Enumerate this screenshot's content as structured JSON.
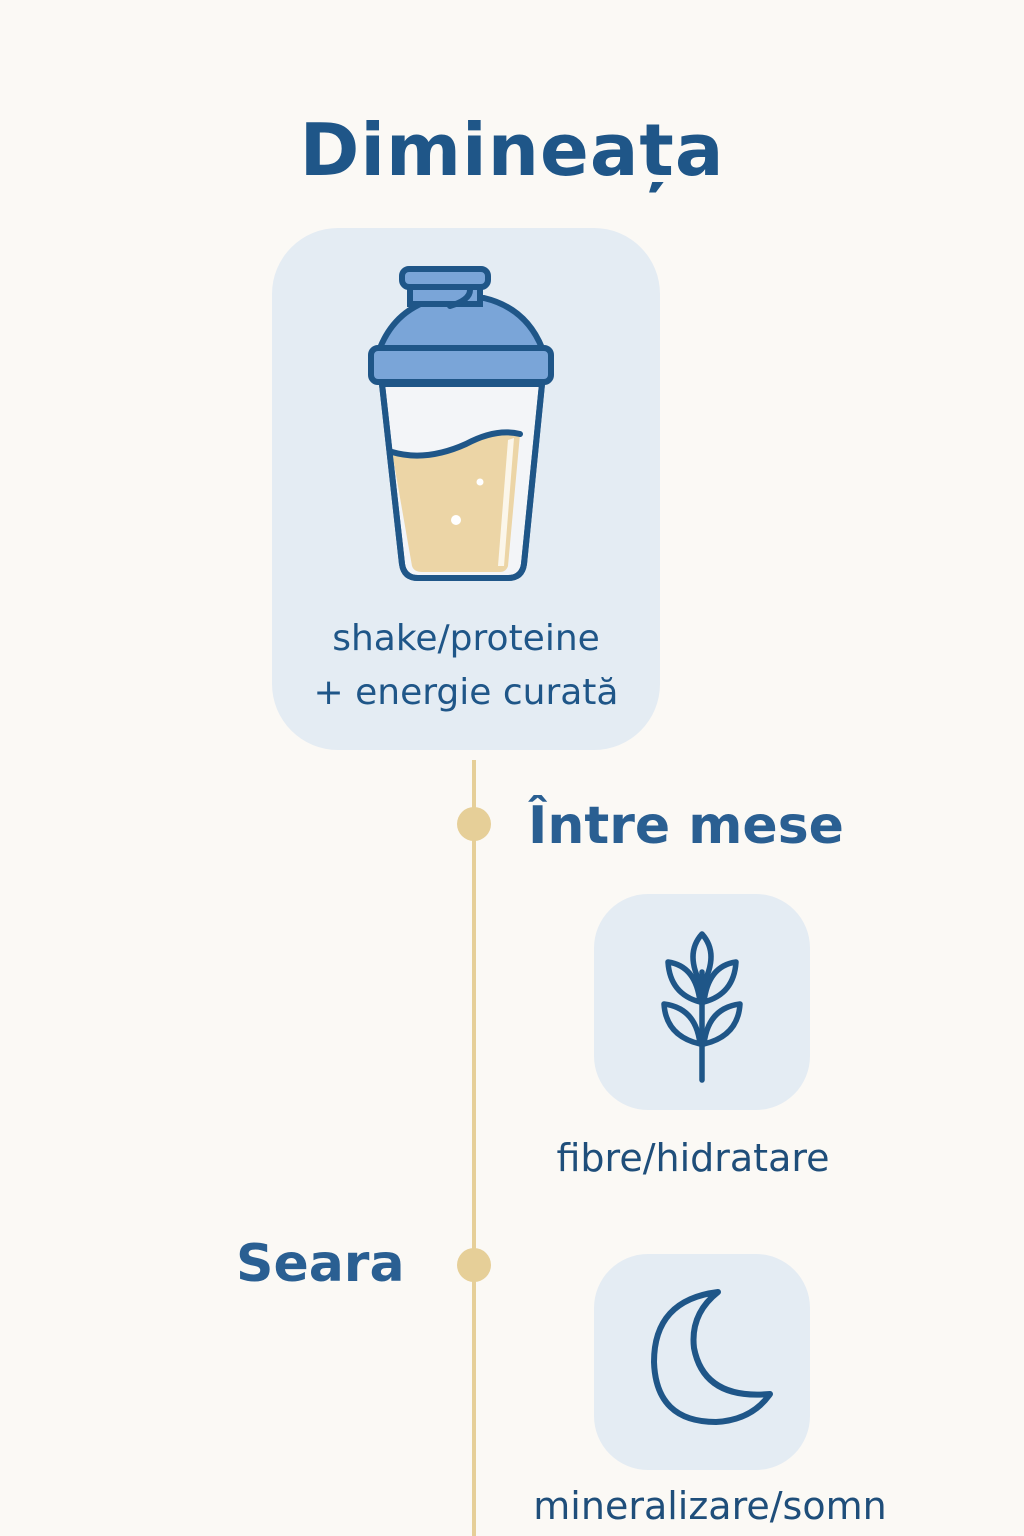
{
  "title": "Dimineața",
  "morning": {
    "icon": "shaker-icon",
    "caption_line1": "shake/proteine",
    "caption_line2": "+ energie curată"
  },
  "between_meals": {
    "heading": "Între mese",
    "icon": "wheat-icon",
    "label": "fibre/hidratare"
  },
  "evening": {
    "heading": "Seara",
    "icon": "moon-icon",
    "label": "mineralizare/somn"
  },
  "colors": {
    "background": "#fbf9f5",
    "primary_blue": "#1f5688",
    "card_bg": "#e4ecf3",
    "accent_gold": "#e6cf98",
    "shaker_lid": "#7aa5d8",
    "shake_liquid": "#ecd5a6"
  }
}
